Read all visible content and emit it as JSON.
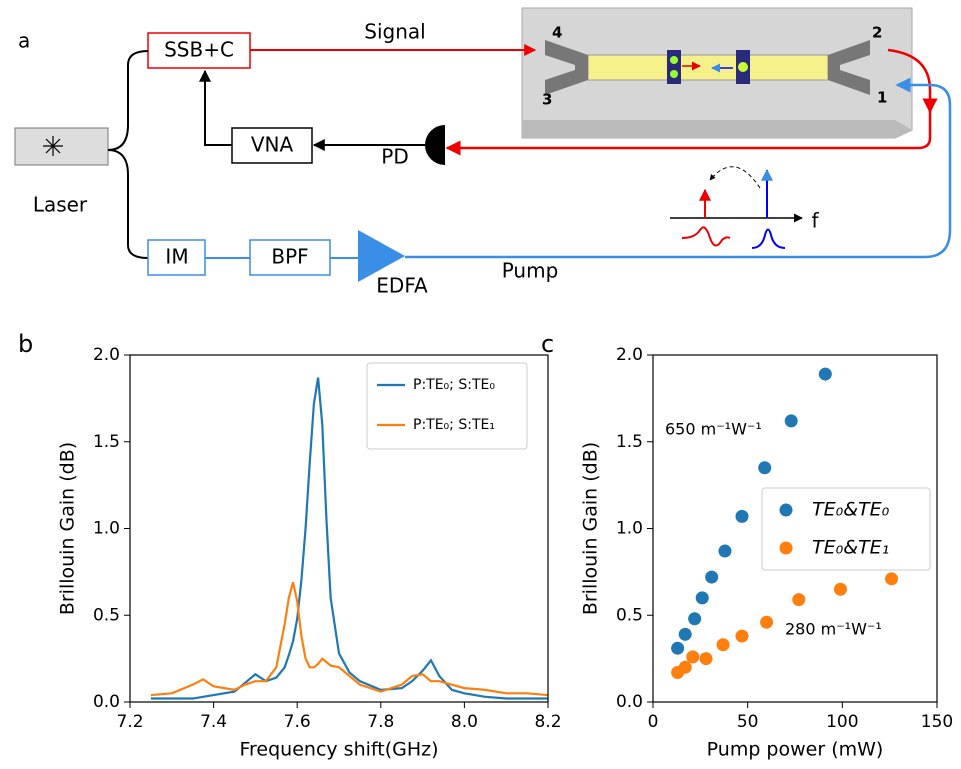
{
  "diagram": {
    "panel": "a",
    "ssb": "SSB+C",
    "signal": "Signal",
    "vna": "VNA",
    "pd": "PD",
    "laser": "Laser",
    "im": "IM",
    "bpf": "BPF",
    "edfa": "EDFA",
    "pump": "Pump",
    "freq": "f",
    "ports": [
      "1",
      "2",
      "3",
      "4"
    ]
  },
  "chart_data": [
    {
      "type": "line",
      "panel": "b",
      "xlabel": "Frequency shift(GHz)",
      "ylabel": "Brillouin Gain (dB)",
      "x": [
        7.25,
        7.3,
        7.35,
        7.375,
        7.4,
        7.45,
        7.475,
        7.5,
        7.525,
        7.55,
        7.57,
        7.58,
        7.59,
        7.6,
        7.61,
        7.62,
        7.63,
        7.64,
        7.65,
        7.66,
        7.67,
        7.68,
        7.7,
        7.725,
        7.75,
        7.8,
        7.85,
        7.875,
        7.9,
        7.92,
        7.94,
        7.97,
        8.0,
        8.05,
        8.1,
        8.15,
        8.2
      ],
      "series": [
        {
          "name": "P:TE₀; S:TE₀",
          "color": "#1f77b4",
          "values": [
            0.02,
            0.02,
            0.02,
            0.03,
            0.04,
            0.06,
            0.11,
            0.16,
            0.12,
            0.14,
            0.2,
            0.27,
            0.35,
            0.48,
            0.7,
            1.0,
            1.38,
            1.72,
            1.87,
            1.6,
            1.05,
            0.6,
            0.28,
            0.17,
            0.12,
            0.07,
            0.08,
            0.12,
            0.18,
            0.24,
            0.15,
            0.07,
            0.05,
            0.03,
            0.02,
            0.02,
            0.02
          ]
        },
        {
          "name": "P:TE₀; S:TE₁",
          "color": "#ff7f0e",
          "values": [
            0.04,
            0.05,
            0.1,
            0.13,
            0.09,
            0.07,
            0.1,
            0.12,
            0.12,
            0.2,
            0.45,
            0.6,
            0.69,
            0.58,
            0.38,
            0.25,
            0.2,
            0.2,
            0.22,
            0.25,
            0.23,
            0.21,
            0.2,
            0.15,
            0.1,
            0.06,
            0.1,
            0.15,
            0.16,
            0.12,
            0.12,
            0.1,
            0.08,
            0.07,
            0.05,
            0.05,
            0.04
          ]
        }
      ],
      "xlim": [
        7.2,
        8.2
      ],
      "xticks": [
        7.2,
        7.4,
        7.6,
        7.8,
        {
          "value": 8,
          "label": "8.0"
        },
        8.2
      ],
      "ylim": [
        0,
        2
      ],
      "yticks": [
        {
          "value": 0,
          "label": "0.0"
        },
        0.5,
        {
          "value": 1,
          "label": "1.0"
        },
        1.5,
        {
          "value": 2,
          "label": "2.0"
        }
      ],
      "legend": "upper right"
    },
    {
      "type": "scatter",
      "panel": "c",
      "xlabel": "Pump power (mW)",
      "ylabel": "Brillouin Gain (dB)",
      "series": [
        {
          "name": "TE₀&TE₀",
          "color": "#1f77b4",
          "x": [
            13,
            17,
            22,
            26,
            31,
            38,
            47,
            59,
            73,
            91
          ],
          "values": [
            0.31,
            0.39,
            0.48,
            0.6,
            0.72,
            0.87,
            1.07,
            1.35,
            1.62,
            1.89
          ]
        },
        {
          "name": "TE₀&TE₁",
          "color": "#ff7f0e",
          "x": [
            13,
            17,
            21,
            28,
            37,
            47,
            60,
            77,
            99,
            126
          ],
          "values": [
            0.17,
            0.2,
            0.26,
            0.25,
            0.33,
            0.38,
            0.46,
            0.59,
            0.65,
            0.71
          ]
        }
      ],
      "annotations": [
        "650 m⁻¹W⁻¹",
        "280 m⁻¹W⁻¹"
      ],
      "xlim": [
        0,
        150
      ],
      "xticks": [
        0,
        50,
        100,
        150
      ],
      "ylim": [
        0,
        2
      ],
      "yticks": [
        {
          "value": 0,
          "label": "0.0"
        },
        0.5,
        {
          "value": 1,
          "label": "1.0"
        },
        1.5,
        {
          "value": 2,
          "label": "2.0"
        }
      ],
      "legend": "center right"
    }
  ]
}
